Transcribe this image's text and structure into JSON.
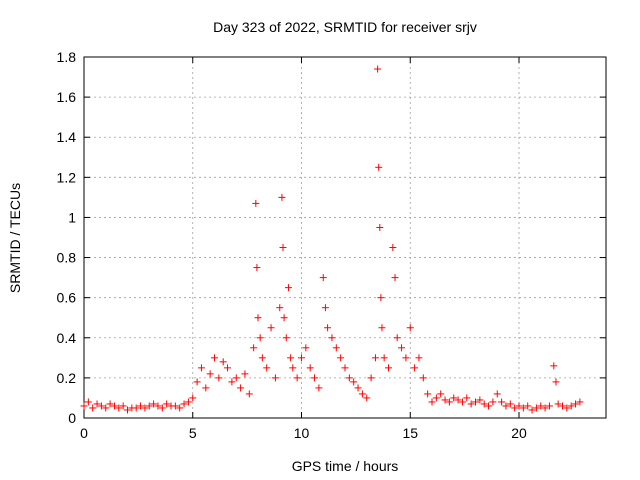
{
  "chart_data": {
    "type": "scatter",
    "title": "Day 323 of 2022, SRMTID for receiver srjv",
    "xlabel": "GPS time / hours",
    "ylabel": "SRMTID / TECUs",
    "xlim": [
      0,
      24
    ],
    "ylim": [
      0,
      1.8
    ],
    "xticks": [
      0,
      5,
      10,
      15,
      20
    ],
    "yticks": [
      0,
      0.2,
      0.4,
      0.6,
      0.8,
      1,
      1.2,
      1.4,
      1.6,
      1.8
    ],
    "ytick_labels": [
      "0",
      "0.2",
      "0.4",
      "0.6",
      "0.8",
      "1",
      "1.2",
      "1.4",
      "1.6",
      "1.8"
    ],
    "grid": true,
    "marker": "+",
    "color": "#ff0000",
    "series": [
      {
        "name": "srjv",
        "x": [
          0.0,
          0.2,
          0.4,
          0.6,
          0.8,
          1.0,
          1.2,
          1.4,
          1.6,
          1.8,
          2.0,
          2.2,
          2.4,
          2.6,
          2.8,
          3.0,
          3.2,
          3.4,
          3.6,
          3.8,
          4.0,
          4.2,
          4.4,
          4.6,
          4.8,
          5.0,
          5.2,
          5.4,
          5.6,
          5.8,
          6.0,
          6.2,
          6.4,
          6.6,
          6.8,
          7.0,
          7.2,
          7.4,
          7.6,
          7.8,
          7.9,
          7.95,
          8.0,
          8.1,
          8.2,
          8.4,
          8.6,
          8.8,
          9.0,
          9.1,
          9.15,
          9.2,
          9.3,
          9.4,
          9.5,
          9.6,
          9.8,
          10.0,
          10.2,
          10.4,
          10.6,
          10.8,
          11.0,
          11.1,
          11.2,
          11.4,
          11.6,
          11.8,
          12.0,
          12.2,
          12.4,
          12.6,
          12.8,
          13.0,
          13.2,
          13.4,
          13.5,
          13.55,
          13.6,
          13.65,
          13.7,
          13.8,
          14.0,
          14.2,
          14.3,
          14.4,
          14.6,
          14.8,
          15.0,
          15.2,
          15.4,
          15.6,
          15.8,
          16.0,
          16.2,
          16.4,
          16.6,
          16.8,
          17.0,
          17.2,
          17.4,
          17.6,
          17.8,
          18.0,
          18.2,
          18.4,
          18.6,
          18.8,
          19.0,
          19.2,
          19.4,
          19.6,
          19.8,
          20.0,
          20.2,
          20.4,
          20.6,
          20.8,
          21.0,
          21.2,
          21.4,
          21.6,
          21.7,
          21.8,
          22.0,
          22.2,
          22.4,
          22.6,
          22.8
        ],
        "y": [
          0.06,
          0.08,
          0.05,
          0.07,
          0.06,
          0.05,
          0.07,
          0.06,
          0.05,
          0.06,
          0.04,
          0.05,
          0.05,
          0.06,
          0.05,
          0.06,
          0.07,
          0.06,
          0.05,
          0.07,
          0.06,
          0.06,
          0.05,
          0.07,
          0.08,
          0.1,
          0.18,
          0.25,
          0.15,
          0.22,
          0.3,
          0.2,
          0.28,
          0.25,
          0.18,
          0.2,
          0.15,
          0.22,
          0.12,
          0.35,
          1.07,
          0.75,
          0.5,
          0.4,
          0.3,
          0.25,
          0.45,
          0.2,
          0.55,
          1.1,
          0.85,
          0.5,
          0.4,
          0.65,
          0.3,
          0.25,
          0.2,
          0.3,
          0.35,
          0.25,
          0.2,
          0.15,
          0.7,
          0.55,
          0.45,
          0.4,
          0.35,
          0.3,
          0.25,
          0.2,
          0.18,
          0.15,
          0.12,
          0.1,
          0.2,
          0.3,
          1.74,
          1.25,
          0.95,
          0.6,
          0.45,
          0.3,
          0.25,
          0.85,
          0.7,
          0.4,
          0.35,
          0.3,
          0.45,
          0.25,
          0.3,
          0.2,
          0.12,
          0.08,
          0.1,
          0.12,
          0.09,
          0.08,
          0.1,
          0.09,
          0.08,
          0.1,
          0.07,
          0.08,
          0.09,
          0.07,
          0.06,
          0.08,
          0.12,
          0.08,
          0.06,
          0.07,
          0.05,
          0.06,
          0.05,
          0.06,
          0.04,
          0.05,
          0.06,
          0.05,
          0.06,
          0.26,
          0.18,
          0.07,
          0.06,
          0.05,
          0.06,
          0.07,
          0.08
        ]
      }
    ]
  }
}
